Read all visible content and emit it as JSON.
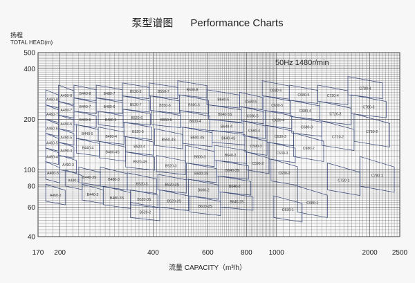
{
  "chart_data": {
    "type": "table",
    "title": "泵型谱图      Performance Charts",
    "ylabel_cn": "扬程",
    "ylabel": "TOTAL HEAD(m)",
    "xlabel": "流量 CAPACITY（m³/h）",
    "annotation": "50Hz 1480r/min",
    "x_scale": "log",
    "y_scale": "log",
    "xlim": [
      170,
      2500
    ],
    "ylim": [
      40,
      500
    ],
    "x_ticks": [
      170,
      200,
      400,
      600,
      800,
      1000,
      2000,
      2500
    ],
    "y_ticks": [
      40,
      60,
      80,
      100,
      200,
      400,
      500
    ],
    "grid": true,
    "regions": [
      {
        "label": "A460-8",
        "x": [
          180,
          198
        ],
        "y": [
          300,
          244
        ]
      },
      {
        "label": "A460-7",
        "x": [
          180,
          198
        ],
        "y": [
          244,
          200
        ]
      },
      {
        "label": "A460-6",
        "x": [
          180,
          198
        ],
        "y": [
          200,
          165
        ]
      },
      {
        "label": "A460-5",
        "x": [
          180,
          198
        ],
        "y": [
          165,
          135
        ]
      },
      {
        "label": "A460-4",
        "x": [
          180,
          198
        ],
        "y": [
          135,
          112
        ]
      },
      {
        "label": "A460-3",
        "x": [
          180,
          200
        ],
        "y": [
          112,
          88
        ]
      },
      {
        "label": "A460-2",
        "x": [
          180,
          208
        ],
        "y": [
          82,
          65
        ]
      },
      {
        "label": "A490-8",
        "x": [
          198,
          222
        ],
        "y": [
          320,
          256
        ]
      },
      {
        "label": "A490-7",
        "x": [
          198,
          222
        ],
        "y": [
          256,
          212
        ]
      },
      {
        "label": "A490-6",
        "x": [
          198,
          222
        ],
        "y": [
          212,
          176
        ]
      },
      {
        "label": "A490-5",
        "x": [
          198,
          222
        ],
        "y": [
          176,
          146
        ]
      },
      {
        "label": "A490-4",
        "x": [
          198,
          222
        ],
        "y": [
          146,
          122
        ]
      },
      {
        "label": "A490-3",
        "x": [
          200,
          226
        ],
        "y": [
          122,
          100
        ]
      },
      {
        "label": "A490-2",
        "x": [
          208,
          236
        ],
        "y": [
          100,
          80
        ]
      },
      {
        "label": "B440-8",
        "x": [
          222,
          262
        ],
        "y": [
          320,
          268
        ]
      },
      {
        "label": "B440-7",
        "x": [
          222,
          262
        ],
        "y": [
          268,
          224
        ]
      },
      {
        "label": "B440-6",
        "x": [
          222,
          262
        ],
        "y": [
          224,
          186
        ]
      },
      {
        "label": "B440-5",
        "x": [
          226,
          266
        ],
        "y": [
          186,
          154
        ]
      },
      {
        "label": "B440-4",
        "x": [
          226,
          268
        ],
        "y": [
          154,
          126
        ]
      },
      {
        "label": "B440-3S",
        "x": [
          230,
          270
        ],
        "y": [
          104,
          84
        ]
      },
      {
        "label": "B440-3",
        "x": [
          236,
          276
        ],
        "y": [
          82,
          66
        ]
      },
      {
        "label": "B480-7",
        "x": [
          262,
          318
        ],
        "y": [
          320,
          268
        ]
      },
      {
        "label": "B480-6",
        "x": [
          262,
          318
        ],
        "y": [
          268,
          224
        ]
      },
      {
        "label": "B480-5",
        "x": [
          266,
          320
        ],
        "y": [
          224,
          186
        ]
      },
      {
        "label": "B480-4",
        "x": [
          266,
          322
        ],
        "y": [
          180,
          148
        ]
      },
      {
        "label": "B480-4S",
        "x": [
          268,
          326
        ],
        "y": [
          148,
          118
        ]
      },
      {
        "label": "B480-3",
        "x": [
          270,
          330
        ],
        "y": [
          104,
          80
        ]
      },
      {
        "label": "B480-3S",
        "x": [
          276,
          338
        ],
        "y": [
          80,
          62
        ]
      },
      {
        "label": "B520-8",
        "x": [
          318,
          388
        ],
        "y": [
          330,
          276
        ]
      },
      {
        "label": "B520-7",
        "x": [
          318,
          388
        ],
        "y": [
          276,
          230
        ]
      },
      {
        "label": "B520-6",
        "x": [
          320,
          392
        ],
        "y": [
          230,
          192
        ]
      },
      {
        "label": "B520-5",
        "x": [
          322,
          396
        ],
        "y": [
          192,
          158
        ]
      },
      {
        "label": "B520-4",
        "x": [
          326,
          400
        ],
        "y": [
          158,
          128
        ]
      },
      {
        "label": "B520-4S",
        "x": [
          326,
          404
        ],
        "y": [
          128,
          104
        ]
      },
      {
        "label": "B520-3",
        "x": [
          330,
          410
        ],
        "y": [
          96,
          76
        ]
      },
      {
        "label": "B520-3S",
        "x": [
          338,
          414
        ],
        "y": [
          76,
          62
        ]
      },
      {
        "label": "B520-2",
        "x": [
          338,
          420
        ],
        "y": [
          64,
          52
        ]
      },
      {
        "label": "B550-7",
        "x": [
          388,
          480
        ],
        "y": [
          330,
          276
        ]
      },
      {
        "label": "B550-6",
        "x": [
          392,
          486
        ],
        "y": [
          276,
          226
        ]
      },
      {
        "label": "B550-5",
        "x": [
          396,
          490
        ],
        "y": [
          226,
          186
        ]
      },
      {
        "label": "B550-4S",
        "x": [
          404,
          498
        ],
        "y": [
          176,
          140
        ]
      },
      {
        "label": "B520-3",
        "x": [
          410,
          508
        ],
        "y": [
          122,
          98
        ]
      },
      {
        "label": "B520-3S",
        "x": [
          414,
          512
        ],
        "y": [
          94,
          76
        ]
      },
      {
        "label": "B520-2S",
        "x": [
          420,
          520
        ],
        "y": [
          76,
          60
        ]
      },
      {
        "label": "B600-8",
        "x": [
          480,
          596
        ],
        "y": [
          340,
          280
        ]
      },
      {
        "label": "B600-6",
        "x": [
          486,
          604
        ],
        "y": [
          280,
          226
        ]
      },
      {
        "label": "B600-4",
        "x": [
          490,
          610
        ],
        "y": [
          226,
          180
        ]
      },
      {
        "label": "B600-4S",
        "x": [
          498,
          620
        ],
        "y": [
          180,
          144
        ]
      },
      {
        "label": "B600-3",
        "x": [
          508,
          630
        ],
        "y": [
          140,
          110
        ]
      },
      {
        "label": "B600-3S",
        "x": [
          512,
          640
        ],
        "y": [
          110,
          88
        ]
      },
      {
        "label": "B600-2",
        "x": [
          520,
          650
        ],
        "y": [
          88,
          70
        ]
      },
      {
        "label": "B600-2S",
        "x": [
          526,
          660
        ],
        "y": [
          70,
          56
        ]
      },
      {
        "label": "B640-5",
        "x": [
          596,
          760
        ],
        "y": [
          300,
          244
        ]
      },
      {
        "label": "B640-5S",
        "x": [
          604,
          770
        ],
        "y": [
          244,
          200
        ]
      },
      {
        "label": "B640-4",
        "x": [
          610,
          780
        ],
        "y": [
          200,
          172
        ]
      },
      {
        "label": "B640-4S",
        "x": [
          620,
          790
        ],
        "y": [
          172,
          146
        ]
      },
      {
        "label": "B640-3",
        "x": [
          630,
          800
        ],
        "y": [
          140,
          114
        ]
      },
      {
        "label": "B640-3S",
        "x": [
          640,
          812
        ],
        "y": [
          114,
          92
        ]
      },
      {
        "label": "B640-2",
        "x": [
          650,
          826
        ],
        "y": [
          92,
          74
        ]
      },
      {
        "label": "B640-2S",
        "x": [
          660,
          840
        ],
        "y": [
          74,
          60
        ]
      },
      {
        "label": "C590-6",
        "x": [
          760,
          900
        ],
        "y": [
          290,
          238
        ]
      },
      {
        "label": "C590-5",
        "x": [
          770,
          910
        ],
        "y": [
          238,
          196
        ]
      },
      {
        "label": "C590-4",
        "x": [
          780,
          920
        ],
        "y": [
          196,
          160
        ]
      },
      {
        "label": "C590-3",
        "x": [
          790,
          932
        ],
        "y": [
          160,
          128
        ]
      },
      {
        "label": "C590-2",
        "x": [
          800,
          946
        ],
        "y": [
          128,
          100
        ]
      },
      {
        "label": "C630-6",
        "x": [
          900,
          1100
        ],
        "y": [
          340,
          276
        ]
      },
      {
        "label": "C630-5",
        "x": [
          910,
          1110
        ],
        "y": [
          276,
          226
        ]
      },
      {
        "label": "C630-4",
        "x": [
          920,
          1120
        ],
        "y": [
          226,
          184
        ]
      },
      {
        "label": "C630-3",
        "x": [
          932,
          1136
        ],
        "y": [
          184,
          146
        ]
      },
      {
        "label": "C630-3",
        "x": [
          946,
          1150
        ],
        "y": [
          146,
          116
        ]
      },
      {
        "label": "C630-2",
        "x": [
          960,
          1170
        ],
        "y": [
          116,
          86
        ]
      },
      {
        "label": "C630-1",
        "x": [
          980,
          1210
        ],
        "y": [
          70,
          52
        ]
      },
      {
        "label": "C680-5",
        "x": [
          1100,
          1360
        ],
        "y": [
          320,
          260
        ]
      },
      {
        "label": "C680-4",
        "x": [
          1110,
          1380
        ],
        "y": [
          260,
          208
        ]
      },
      {
        "label": "C680-3",
        "x": [
          1120,
          1400
        ],
        "y": [
          208,
          166
        ]
      },
      {
        "label": "C680-2",
        "x": [
          1136,
          1420
        ],
        "y": [
          166,
          120
        ]
      },
      {
        "label": "C680-1",
        "x": [
          1170,
          1460
        ],
        "y": [
          80,
          56
        ]
      },
      {
        "label": "C720-4",
        "x": [
          1360,
          1700
        ],
        "y": [
          320,
          256
        ]
      },
      {
        "label": "C720-3",
        "x": [
          1380,
          1740
        ],
        "y": [
          256,
          196
        ]
      },
      {
        "label": "C720-2",
        "x": [
          1400,
          1780
        ],
        "y": [
          196,
          140
        ]
      },
      {
        "label": "C720-1",
        "x": [
          1460,
          1860
        ],
        "y": [
          110,
          76
        ]
      },
      {
        "label": "C780-4",
        "x": [
          1700,
          2200
        ],
        "y": [
          360,
          280
        ]
      },
      {
        "label": "C780-3",
        "x": [
          1740,
          2260
        ],
        "y": [
          280,
          216
        ]
      },
      {
        "label": "C780-2",
        "x": [
          1780,
          2320
        ],
        "y": [
          216,
          148
        ]
      },
      {
        "label": "C780-1",
        "x": [
          1860,
          2400
        ],
        "y": [
          120,
          80
        ]
      }
    ]
  }
}
